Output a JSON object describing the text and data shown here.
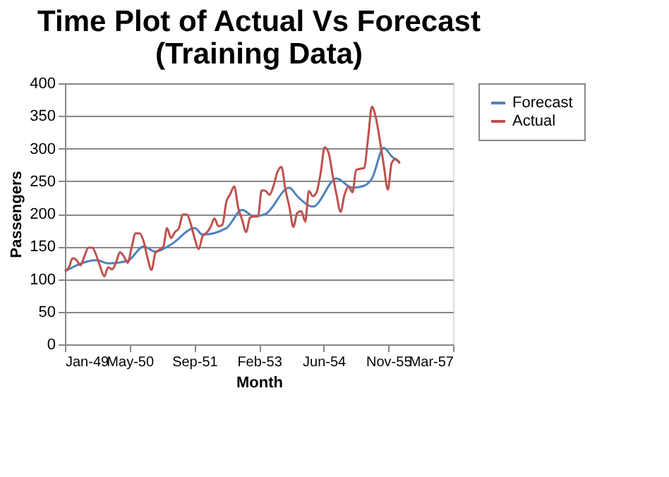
{
  "chart_data": {
    "type": "line",
    "title": "Time Plot of Actual Vs Forecast\n(Training Data)",
    "xlabel": "Month",
    "ylabel": "Passengers",
    "xlim": [
      "1949-01-01",
      "1957-03-19"
    ],
    "xticks": [
      {
        "value": "1949-01-01",
        "label": "Jan-49"
      },
      {
        "value": "1950-05-16",
        "label": "May-50"
      },
      {
        "value": "1951-09-28",
        "label": "Sep-51"
      },
      {
        "value": "1953-02-09",
        "label": "Feb-53"
      },
      {
        "value": "1954-06-23",
        "label": "Jun-54"
      },
      {
        "value": "1955-11-05",
        "label": "Nov-55"
      },
      {
        "value": "1957-03-19",
        "label": "Mar-57"
      }
    ],
    "ylim": [
      0,
      400
    ],
    "yticks": [
      0,
      50,
      100,
      150,
      200,
      250,
      300,
      350,
      400
    ],
    "grid": "y",
    "legend": "right",
    "marker": "none",
    "line_style": "solid",
    "series": [
      {
        "name": "Forecast",
        "color": "#4f81bd",
        "x": [
          "1949-01",
          "1949-09",
          "1949-12",
          "1950-05",
          "1950-09",
          "1950-12",
          "1951-04",
          "1951-10",
          "1951-12",
          "1952-06",
          "1952-10",
          "1953-01",
          "1953-04",
          "1953-10",
          "1953-12",
          "1954-04",
          "1954-10",
          "1955-02",
          "1955-05",
          "1955-07",
          "1955-10",
          "1955-12",
          "1956-02"
        ],
        "values": [
          112,
          129,
          124,
          128,
          150,
          142,
          153,
          178,
          168,
          178,
          206,
          196,
          200,
          240,
          227,
          211,
          254,
          240,
          243,
          254,
          301,
          288,
          279
        ]
      },
      {
        "name": "Actual",
        "color": "#c0504d",
        "x": [
          "1949-01",
          "1949-02",
          "1949-03",
          "1949-04",
          "1949-05",
          "1949-06",
          "1949-07",
          "1949-08",
          "1949-09",
          "1949-10",
          "1949-11",
          "1949-12",
          "1950-01",
          "1950-02",
          "1950-03",
          "1950-04",
          "1950-05",
          "1950-06",
          "1950-07",
          "1950-08",
          "1950-09",
          "1950-10",
          "1950-11",
          "1950-12",
          "1951-01",
          "1951-02",
          "1951-03",
          "1951-04",
          "1951-05",
          "1951-06",
          "1951-07",
          "1951-08",
          "1951-09",
          "1951-10",
          "1951-11",
          "1951-12",
          "1952-01",
          "1952-02",
          "1952-03",
          "1952-04",
          "1952-05",
          "1952-06",
          "1952-07",
          "1952-08",
          "1952-09",
          "1952-10",
          "1952-11",
          "1952-12",
          "1953-01",
          "1953-02",
          "1953-03",
          "1953-04",
          "1953-05",
          "1953-06",
          "1953-07",
          "1953-08",
          "1953-09",
          "1953-10",
          "1953-11",
          "1953-12",
          "1954-01",
          "1954-02",
          "1954-03",
          "1954-04",
          "1954-05",
          "1954-06",
          "1954-07",
          "1954-08",
          "1954-09",
          "1954-10",
          "1954-11",
          "1954-12",
          "1955-01",
          "1955-02",
          "1955-03",
          "1955-04",
          "1955-05",
          "1955-06",
          "1955-07",
          "1955-08",
          "1955-09",
          "1955-10",
          "1955-11",
          "1955-12",
          "1956-01",
          "1956-02"
        ],
        "values": [
          112,
          118,
          132,
          129,
          121,
          135,
          148,
          148,
          136,
          119,
          104,
          118,
          115,
          126,
          141,
          135,
          125,
          149,
          170,
          170,
          158,
          133,
          114,
          140,
          145,
          150,
          178,
          163,
          172,
          178,
          199,
          199,
          184,
          162,
          146,
          166,
          171,
          180,
          193,
          181,
          183,
          218,
          230,
          242,
          209,
          191,
          172,
          194,
          196,
          196,
          236,
          235,
          229,
          243,
          264,
          272,
          237,
          211,
          180,
          201,
          204,
          188,
          235,
          227,
          234,
          264,
          302,
          293,
          259,
          229,
          203,
          229,
          242,
          233,
          267,
          269,
          270,
          315,
          364,
          347,
          312,
          274,
          237,
          278,
          284,
          277
        ]
      }
    ]
  }
}
